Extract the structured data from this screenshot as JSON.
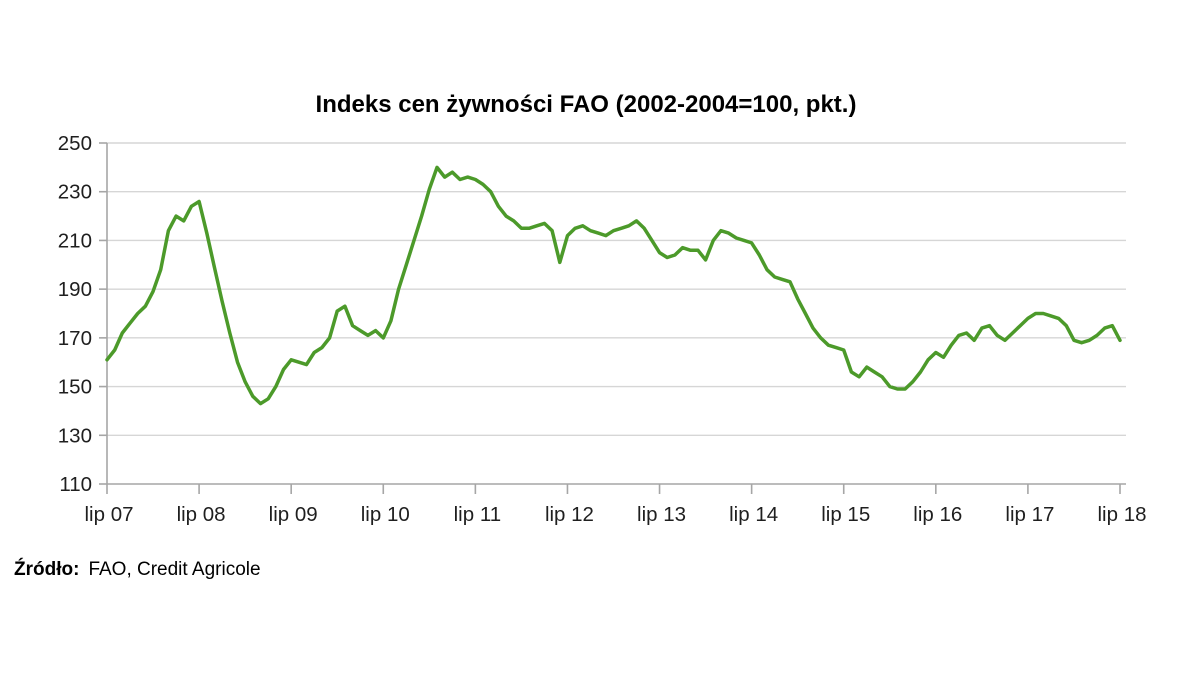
{
  "title": "Indeks cen żywności FAO (2002-2004=100, pkt.)",
  "source_note": {
    "label": "Źródło:",
    "text": "FAO, Credit Agricole"
  },
  "chart_data": {
    "type": "line",
    "title": "Indeks cen żywności FAO (2002-2004=100, pkt.)",
    "frequency": "monthly",
    "x_start_label": "lip 07",
    "x_end_label": "lip 18",
    "x_tick_labels": [
      "lip 07",
      "lip 08",
      "lip 09",
      "lip 10",
      "lip 11",
      "lip 12",
      "lip 13",
      "lip 14",
      "lip 15",
      "lip 16",
      "lip 17",
      "lip 18"
    ],
    "x_tick_every": 12,
    "yticks": [
      110,
      130,
      150,
      170,
      190,
      210,
      230,
      250
    ],
    "ylim": [
      110,
      250
    ],
    "grid": true,
    "legend": false,
    "colors": {
      "line": "#4C9A2A",
      "gridline": "#d6d6d6",
      "axis": "#a6a6a6",
      "tick_text": "#1f1f1f"
    },
    "series": [
      {
        "name": "Indeks cen żywności FAO",
        "values": [
          161,
          165,
          172,
          176,
          180,
          183,
          189,
          198,
          214,
          220,
          218,
          224,
          226,
          213,
          199,
          185,
          172,
          160,
          152,
          146,
          143,
          145,
          150,
          157,
          161,
          160,
          159,
          164,
          166,
          170,
          181,
          183,
          175,
          173,
          171,
          173,
          170,
          177,
          190,
          200,
          210,
          220,
          231,
          240,
          236,
          238,
          235,
          236,
          235,
          233,
          230,
          224,
          220,
          218,
          215,
          215,
          216,
          217,
          214,
          201,
          212,
          215,
          216,
          214,
          213,
          212,
          214,
          215,
          216,
          218,
          215,
          210,
          205,
          203,
          204,
          207,
          206,
          206,
          202,
          210,
          214,
          213,
          211,
          210,
          209,
          204,
          198,
          195,
          194,
          193,
          186,
          180,
          174,
          170,
          167,
          166,
          165,
          156,
          154,
          158,
          156,
          154,
          150,
          149,
          149,
          152,
          156,
          161,
          164,
          162,
          167,
          171,
          172,
          169,
          174,
          175,
          171,
          169,
          172,
          175,
          178,
          180,
          180,
          179,
          178,
          175,
          169,
          168,
          169,
          171,
          174,
          175,
          169
        ]
      }
    ]
  }
}
